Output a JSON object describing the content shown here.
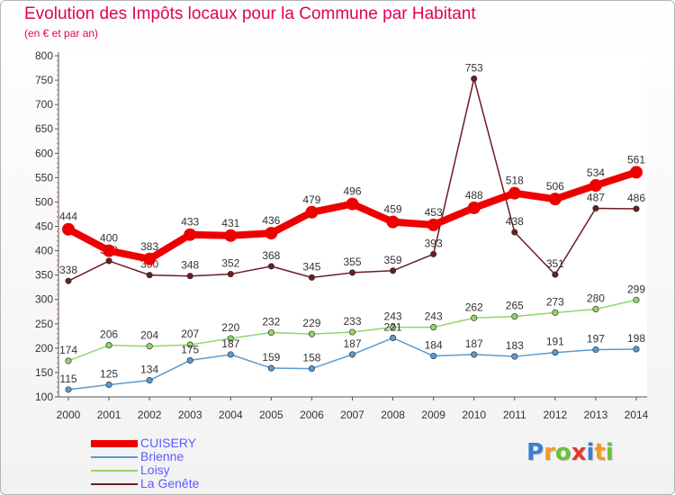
{
  "header": {
    "title": "Evolution des Impôts locaux pour la Commune par Habitant",
    "subtitle": "(en € et par an)"
  },
  "brand": {
    "letters": [
      "P",
      "r",
      "o",
      "x",
      "i",
      "t",
      "i"
    ]
  },
  "chart_data": {
    "type": "line",
    "x": [
      "2000",
      "2001",
      "2002",
      "2003",
      "2004",
      "2005",
      "2006",
      "2007",
      "2008",
      "2009",
      "2010",
      "2011",
      "2012",
      "2013",
      "2014"
    ],
    "ylim": [
      100,
      800
    ],
    "yticks": [
      100,
      150,
      200,
      250,
      300,
      350,
      400,
      450,
      500,
      550,
      600,
      650,
      700,
      750,
      800
    ],
    "grid": false,
    "legend_position": "bottom-left",
    "series": [
      {
        "name": "La Genête",
        "color": "#6b1c23",
        "values": [
          338,
          379,
          350,
          348,
          352,
          368,
          345,
          355,
          359,
          393,
          753,
          438,
          351,
          487,
          486
        ]
      },
      {
        "name": "Loisy",
        "color": "#8fd86b",
        "values": [
          174,
          206,
          204,
          207,
          220,
          232,
          229,
          233,
          243,
          243,
          262,
          265,
          273,
          280,
          299
        ]
      },
      {
        "name": "Brienne",
        "color": "#5b9bd0",
        "values": [
          115,
          125,
          134,
          175,
          187,
          159,
          158,
          187,
          221,
          184,
          187,
          183,
          191,
          197,
          198
        ]
      },
      {
        "name": "CUISERY",
        "color": "#ee0000",
        "values": [
          444,
          400,
          383,
          433,
          431,
          436,
          479,
          496,
          459,
          453,
          488,
          518,
          506,
          534,
          561
        ]
      }
    ],
    "legend_order": [
      "CUISERY",
      "Brienne",
      "Loisy",
      "La Genête"
    ]
  }
}
